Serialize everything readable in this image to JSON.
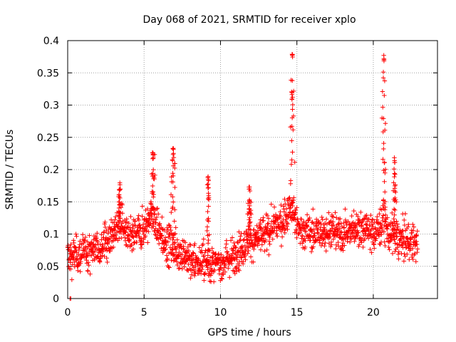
{
  "chart_data": {
    "type": "scatter",
    "title": "Day 068 of 2021, SRMTID for receiver xplo",
    "xlabel": "GPS time / hours",
    "ylabel": "SRMTID / TECUs",
    "xlim": [
      0,
      24.2
    ],
    "ylim": [
      0,
      0.4
    ],
    "x_ticks": [
      0,
      5,
      10,
      15,
      20
    ],
    "x_tick_labels": [
      "0",
      "5",
      "10",
      "15",
      "20"
    ],
    "y_ticks": [
      0,
      0.05,
      0.1,
      0.15,
      0.2,
      0.25,
      0.3,
      0.35,
      0.4
    ],
    "y_tick_labels": [
      "0",
      "0.05",
      "0.1",
      "0.15",
      "0.2",
      "0.25",
      "0.3",
      "0.35",
      "0.4"
    ],
    "grid": true,
    "marker": "plus",
    "color": "#ff0000",
    "x_data_range": [
      0,
      22.9
    ],
    "series": [
      {
        "name": "SRMTID",
        "trend": {
          "x": [
            0,
            1,
            2,
            3,
            3.5,
            4,
            5,
            5.5,
            6,
            6.5,
            7,
            8,
            9,
            9.5,
            10,
            11,
            12,
            13,
            14,
            14.7,
            15,
            16,
            17,
            18,
            19,
            20,
            20.7,
            21,
            22,
            22.9
          ],
          "y": [
            0.065,
            0.07,
            0.08,
            0.1,
            0.12,
            0.09,
            0.11,
            0.13,
            0.1,
            0.085,
            0.08,
            0.06,
            0.055,
            0.05,
            0.055,
            0.07,
            0.09,
            0.1,
            0.12,
            0.14,
            0.11,
            0.1,
            0.105,
            0.1,
            0.11,
            0.1,
            0.12,
            0.1,
            0.09,
            0.085
          ]
        },
        "peaks": [
          {
            "x": 3.4,
            "y": 0.18
          },
          {
            "x": 5.6,
            "y": 0.23
          },
          {
            "x": 6.9,
            "y": 0.235
          },
          {
            "x": 9.2,
            "y": 0.19
          },
          {
            "x": 11.9,
            "y": 0.175
          },
          {
            "x": 14.7,
            "y": 0.38
          },
          {
            "x": 20.7,
            "y": 0.38
          },
          {
            "x": 21.4,
            "y": 0.22
          }
        ],
        "outliers": [
          {
            "x": 0.15,
            "y": 0.0
          },
          {
            "x": 0.2,
            "y": 0.0
          }
        ]
      }
    ]
  }
}
